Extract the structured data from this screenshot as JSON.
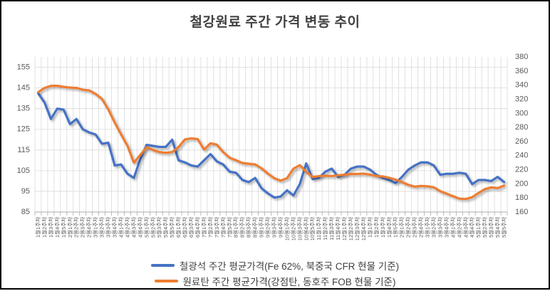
{
  "window": {
    "background": "#FFFFFF",
    "border_color": "#000000"
  },
  "title": "철강원료 주간 가격 변동 추이",
  "legend": {
    "series1_label": "철광석 주간 평균가격(Fe 62%, 북중국 CFR 현물 기준)",
    "series2_label": "원료탄 주간 평균가격(강점탄, 동호주 FOB 현물 기준)"
  },
  "chart_data": {
    "type": "line",
    "title": "철강원료 주간 가격 변동 추이",
    "grid": true,
    "legend_position": "bottom",
    "gridline_color": "#D9D9D9",
    "axis_line_color": "#ABABAB",
    "label_color": "#595959",
    "left_axis": {
      "min": 85,
      "max": 160,
      "ticks": [
        85,
        95,
        105,
        115,
        125,
        135,
        145,
        155
      ]
    },
    "right_axis": {
      "min": 160,
      "max": 380,
      "ticks": [
        160,
        180,
        200,
        220,
        240,
        260,
        280,
        300,
        320,
        340,
        360,
        380
      ]
    },
    "categories": [
      "1월1주차",
      "1월2주차",
      "1월3주차",
      "1월4주차",
      "1월5주차",
      "2월1주차",
      "2월2주차",
      "2월3주차",
      "2월4주차",
      "3월1주차",
      "3월2주차",
      "3월3주차",
      "3월4주차",
      "4월1주차",
      "4월2주차",
      "4월3주차",
      "4월4주차",
      "5월1주차",
      "5월2주차",
      "5월3주차",
      "5월4주차",
      "5월5주차",
      "6월1주차",
      "6월2주차",
      "6월3주차",
      "6월4주차",
      "7월1주차",
      "7월2주차",
      "7월3주차",
      "7월4주차",
      "7월5주차",
      "8월1주차",
      "8월2주차",
      "8월3주차",
      "8월4주차",
      "9월1주차",
      "9월2주차",
      "9월3주차",
      "9월4주차",
      "10월1주차",
      "10월2주차",
      "10월3주차",
      "10월4주차",
      "10월5주차",
      "11월1주차",
      "11월2주차",
      "11월3주차",
      "11월4주차",
      "12월1주차",
      "12월2주차",
      "12월3주차",
      "12월4주차",
      "1월1주차",
      "1월2주차",
      "1월3주차",
      "1월4주차",
      "1월5주차",
      "2월1주차",
      "2월2주차",
      "2월3주차",
      "2월4주차",
      "3월1주차",
      "3월2주차",
      "3월3주차",
      "3월4주차",
      "4월1주차",
      "4월2주차",
      "4월3주차",
      "4월4주차",
      "5월1주차",
      "5월2주차",
      "5월3주차",
      "5월4주차",
      "5월5주차"
    ],
    "series": [
      {
        "name": "철광석 주간 평균가격(Fe 62%, 북중국 CFR 현물 기준)",
        "axis": "left_axis",
        "color": "#4472C4",
        "values": [
          142.5,
          138,
          130,
          135,
          134.5,
          127.5,
          130,
          125,
          123.5,
          122.5,
          118,
          118.5,
          107.5,
          108,
          103.5,
          101.5,
          110.5,
          117.5,
          117,
          116.5,
          116.5,
          120,
          110,
          109,
          107.5,
          107,
          110,
          113,
          109.5,
          108,
          104.5,
          104,
          100.5,
          99.5,
          101.5,
          96.5,
          94,
          92,
          92.5,
          95.5,
          93,
          98.5,
          108.5,
          101,
          101.5,
          104.5,
          106,
          102,
          103,
          106,
          107,
          107,
          105.5,
          103,
          101.5,
          100.5,
          99,
          102,
          105.5,
          107.5,
          109,
          109,
          107.5,
          103,
          103.5,
          103.5,
          104,
          103.5,
          98.5,
          100.5,
          100.5,
          100,
          102,
          99.5
        ]
      },
      {
        "name": "원료탄 주간 평균가격(강점탄, 동호주 FOB 현물 기준)",
        "axis": "right_axis",
        "color": "#ED7D31",
        "values": [
          330,
          336,
          339,
          339,
          337.5,
          336.5,
          336,
          333.5,
          332.5,
          327.5,
          320.5,
          305.5,
          287,
          270,
          254,
          230,
          241,
          252,
          248,
          245,
          244,
          245,
          252,
          263,
          264.5,
          263.5,
          248.5,
          257.5,
          255.5,
          245,
          237,
          233.5,
          229.5,
          228.5,
          227.5,
          222,
          214.5,
          208,
          204.5,
          208,
          221.5,
          226.5,
          217,
          209.5,
          211,
          211.5,
          211,
          212,
          213,
          214,
          214,
          214.5,
          213,
          211,
          210.5,
          208.5,
          206,
          202.5,
          198.5,
          196,
          197,
          196.5,
          195,
          189.5,
          186,
          182.5,
          179,
          178.5,
          181,
          187,
          192.5,
          195,
          194,
          197.5
        ]
      }
    ]
  }
}
